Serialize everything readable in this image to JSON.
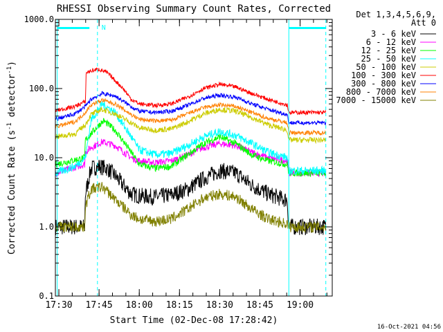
{
  "chart_data": {
    "type": "line",
    "title": "RHESSI Observing Summary Count Rates, Corrected",
    "xlabel": "Start Time (02-Dec-08 17:28:42)",
    "ylabel_main": "Corrected Count Rate (s",
    "ylabel_sup1": "-1",
    "ylabel_mid": " detector",
    "ylabel_sup2": "-1",
    "ylabel_end": ")",
    "yscale": "log",
    "xlim": [
      17.4783,
      19.2
    ],
    "ylim": [
      0.1,
      1000
    ],
    "yticks": [
      {
        "value": 1000,
        "label": "1000.0"
      },
      {
        "value": 100,
        "label": "100.0"
      },
      {
        "value": 10,
        "label": "10.0"
      },
      {
        "value": 1,
        "label": "1.0"
      },
      {
        "value": 0.1,
        "label": "0.1"
      }
    ],
    "xticks": [
      {
        "value": 17.5,
        "label": "17:30"
      },
      {
        "value": 17.75,
        "label": "17:45"
      },
      {
        "value": 18.0,
        "label": "18:00"
      },
      {
        "value": 18.25,
        "label": "18:15"
      },
      {
        "value": 18.5,
        "label": "18:30"
      },
      {
        "value": 18.75,
        "label": "18:45"
      },
      {
        "value": 19.0,
        "label": "19:00"
      }
    ],
    "legend_header": [
      "Det 1,3,4,5,6,9,",
      "Att 0"
    ],
    "legend_placement": "right-outside",
    "timestamp": "16-Oct-2021 04:56",
    "night_marker": "N",
    "night_bars": [
      [
        17.49,
        17.69
      ],
      [
        18.93,
        19.16
      ]
    ],
    "solid_verticals": [
      17.49,
      18.93
    ],
    "dashed_verticals": [
      17.74,
      19.16
    ],
    "series": [
      {
        "name": "3 - 6 keV",
        "color": "#000000",
        "noise": 0.12,
        "points": [
          [
            17.48,
            1.0
          ],
          [
            17.66,
            1.0
          ],
          [
            17.665,
            3.0
          ],
          [
            17.7,
            7.0
          ],
          [
            17.75,
            7.5
          ],
          [
            17.8,
            7.0
          ],
          [
            17.85,
            5.5
          ],
          [
            17.9,
            4.0
          ],
          [
            17.95,
            3.0
          ],
          [
            18.0,
            2.8
          ],
          [
            18.1,
            2.7
          ],
          [
            18.2,
            2.9
          ],
          [
            18.3,
            3.5
          ],
          [
            18.4,
            5.0
          ],
          [
            18.5,
            6.5
          ],
          [
            18.6,
            6.0
          ],
          [
            18.7,
            4.0
          ],
          [
            18.8,
            3.0
          ],
          [
            18.9,
            2.5
          ],
          [
            18.92,
            2.5
          ],
          [
            18.93,
            1.0
          ],
          [
            19.16,
            1.0
          ]
        ]
      },
      {
        "name": "6 - 12 keV",
        "color": "#ff00ff",
        "noise": 0.05,
        "points": [
          [
            17.48,
            6.0
          ],
          [
            17.66,
            8.0
          ],
          [
            17.665,
            12.0
          ],
          [
            17.7,
            14.0
          ],
          [
            17.77,
            17.0
          ],
          [
            17.85,
            15.0
          ],
          [
            17.95,
            10.0
          ],
          [
            18.0,
            9.0
          ],
          [
            18.1,
            8.5
          ],
          [
            18.2,
            9.0
          ],
          [
            18.3,
            11.0
          ],
          [
            18.4,
            14.0
          ],
          [
            18.5,
            16.0
          ],
          [
            18.6,
            15.0
          ],
          [
            18.7,
            12.0
          ],
          [
            18.8,
            10.0
          ],
          [
            18.92,
            9.0
          ],
          [
            18.93,
            6.0
          ],
          [
            19.16,
            6.0
          ]
        ]
      },
      {
        "name": "12 - 25 keV",
        "color": "#00ff00",
        "noise": 0.05,
        "points": [
          [
            17.48,
            8.0
          ],
          [
            17.66,
            10.0
          ],
          [
            17.665,
            18.0
          ],
          [
            17.75,
            30.0
          ],
          [
            17.78,
            34.0
          ],
          [
            17.85,
            25.0
          ],
          [
            17.95,
            12.0
          ],
          [
            18.0,
            8.0
          ],
          [
            18.1,
            7.0
          ],
          [
            18.2,
            7.5
          ],
          [
            18.3,
            11.0
          ],
          [
            18.4,
            16.0
          ],
          [
            18.5,
            20.0
          ],
          [
            18.6,
            16.0
          ],
          [
            18.7,
            11.0
          ],
          [
            18.8,
            9.0
          ],
          [
            18.92,
            8.0
          ],
          [
            18.93,
            6.0
          ],
          [
            19.16,
            6.0
          ]
        ]
      },
      {
        "name": "25 - 50 keV",
        "color": "#00ffff",
        "noise": 0.06,
        "points": [
          [
            17.48,
            6.0
          ],
          [
            17.6,
            7.5
          ],
          [
            17.665,
            10.0
          ],
          [
            17.7,
            35.0
          ],
          [
            17.77,
            60.0
          ],
          [
            17.85,
            45.0
          ],
          [
            17.95,
            20.0
          ],
          [
            18.0,
            13.0
          ],
          [
            18.1,
            11.0
          ],
          [
            18.2,
            11.5
          ],
          [
            18.3,
            15.0
          ],
          [
            18.4,
            20.0
          ],
          [
            18.5,
            24.0
          ],
          [
            18.6,
            21.0
          ],
          [
            18.7,
            16.0
          ],
          [
            18.8,
            12.0
          ],
          [
            18.92,
            10.0
          ],
          [
            18.93,
            6.5
          ],
          [
            19.16,
            6.5
          ]
        ]
      },
      {
        "name": "50 - 100 keV",
        "color": "#cccc00",
        "noise": 0.04,
        "points": [
          [
            17.48,
            20.0
          ],
          [
            17.6,
            22.0
          ],
          [
            17.665,
            30.0
          ],
          [
            17.7,
            42.0
          ],
          [
            17.77,
            50.0
          ],
          [
            17.85,
            43.0
          ],
          [
            17.95,
            32.0
          ],
          [
            18.0,
            27.0
          ],
          [
            18.1,
            25.0
          ],
          [
            18.2,
            26.0
          ],
          [
            18.3,
            33.0
          ],
          [
            18.4,
            43.0
          ],
          [
            18.5,
            50.0
          ],
          [
            18.6,
            47.0
          ],
          [
            18.7,
            38.0
          ],
          [
            18.8,
            30.0
          ],
          [
            18.92,
            25.0
          ],
          [
            18.93,
            18.0
          ],
          [
            19.16,
            18.0
          ]
        ]
      },
      {
        "name": "100 - 300 keV",
        "color": "#ff0000",
        "noise": 0.03,
        "points": [
          [
            17.48,
            48.0
          ],
          [
            17.6,
            55.0
          ],
          [
            17.665,
            65.0
          ],
          [
            17.67,
            170.0
          ],
          [
            17.7,
            180.0
          ],
          [
            17.75,
            190.0
          ],
          [
            17.8,
            170.0
          ],
          [
            17.9,
            100.0
          ],
          [
            17.95,
            70.0
          ],
          [
            18.0,
            60.0
          ],
          [
            18.1,
            57.0
          ],
          [
            18.2,
            60.0
          ],
          [
            18.3,
            75.0
          ],
          [
            18.4,
            100.0
          ],
          [
            18.5,
            115.0
          ],
          [
            18.6,
            105.0
          ],
          [
            18.7,
            85.0
          ],
          [
            18.8,
            70.0
          ],
          [
            18.92,
            58.0
          ],
          [
            18.93,
            45.0
          ],
          [
            19.16,
            45.0
          ]
        ]
      },
      {
        "name": "300 - 800 keV",
        "color": "#0000ff",
        "noise": 0.03,
        "points": [
          [
            17.48,
            36.0
          ],
          [
            17.6,
            43.0
          ],
          [
            17.665,
            55.0
          ],
          [
            17.7,
            70.0
          ],
          [
            17.77,
            85.0
          ],
          [
            17.85,
            78.0
          ],
          [
            17.95,
            55.0
          ],
          [
            18.0,
            47.0
          ],
          [
            18.1,
            45.0
          ],
          [
            18.2,
            47.0
          ],
          [
            18.3,
            57.0
          ],
          [
            18.4,
            72.0
          ],
          [
            18.5,
            80.0
          ],
          [
            18.6,
            75.0
          ],
          [
            18.7,
            60.0
          ],
          [
            18.8,
            50.0
          ],
          [
            18.92,
            42.0
          ],
          [
            18.93,
            32.0
          ],
          [
            19.16,
            32.0
          ]
        ]
      },
      {
        "name": "800 - 7000 keV",
        "color": "#ff8000",
        "noise": 0.03,
        "points": [
          [
            17.48,
            28.0
          ],
          [
            17.6,
            33.0
          ],
          [
            17.665,
            45.0
          ],
          [
            17.7,
            58.0
          ],
          [
            17.77,
            68.0
          ],
          [
            17.85,
            60.0
          ],
          [
            17.95,
            42.0
          ],
          [
            18.0,
            36.0
          ],
          [
            18.1,
            34.0
          ],
          [
            18.2,
            35.0
          ],
          [
            18.3,
            43.0
          ],
          [
            18.4,
            53.0
          ],
          [
            18.5,
            58.0
          ],
          [
            18.6,
            55.0
          ],
          [
            18.7,
            45.0
          ],
          [
            18.8,
            37.0
          ],
          [
            18.92,
            32.0
          ],
          [
            18.93,
            23.0
          ],
          [
            19.16,
            23.0
          ]
        ]
      },
      {
        "name": "7000 - 15000 keV",
        "color": "#808000",
        "noise": 0.08,
        "points": [
          [
            17.48,
            1.0
          ],
          [
            17.66,
            1.0
          ],
          [
            17.665,
            2.0
          ],
          [
            17.7,
            3.5
          ],
          [
            17.77,
            3.8
          ],
          [
            17.85,
            2.5
          ],
          [
            17.95,
            1.5
          ],
          [
            18.0,
            1.3
          ],
          [
            18.1,
            1.2
          ],
          [
            18.2,
            1.3
          ],
          [
            18.3,
            1.8
          ],
          [
            18.4,
            2.6
          ],
          [
            18.5,
            3.0
          ],
          [
            18.6,
            2.7
          ],
          [
            18.7,
            1.8
          ],
          [
            18.8,
            1.3
          ],
          [
            18.92,
            1.1
          ],
          [
            18.93,
            1.0
          ],
          [
            19.16,
            1.0
          ]
        ]
      }
    ]
  }
}
